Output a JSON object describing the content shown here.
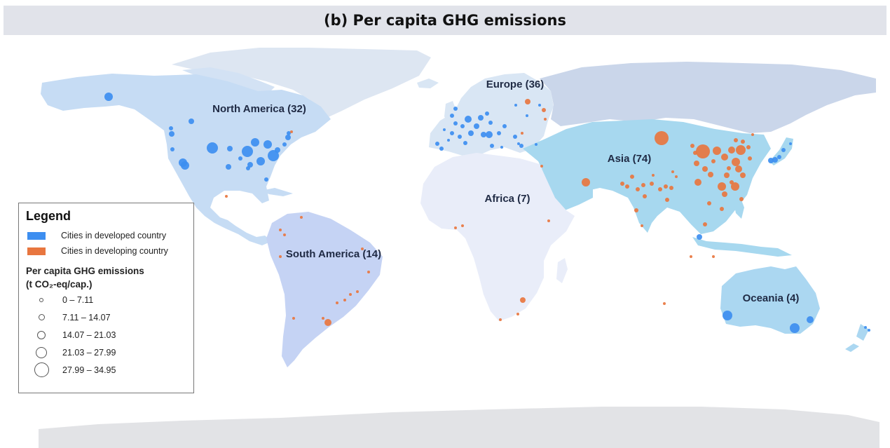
{
  "title": "(b) Per capita GHG emissions",
  "regions": [
    {
      "id": "north-america",
      "label": "North America (32)"
    },
    {
      "id": "europe",
      "label": "Europe (36)"
    },
    {
      "id": "asia",
      "label": "Asia (74)"
    },
    {
      "id": "africa",
      "label": "Africa (7)"
    },
    {
      "id": "south-america",
      "label": "South America (14)"
    },
    {
      "id": "oceania",
      "label": "Oceania (4)"
    }
  ],
  "legend": {
    "title": "Legend",
    "categories": [
      {
        "label": "Cities in developed country",
        "color": "#3d8ef0"
      },
      {
        "label": "Cities in developing country",
        "color": "#e8763f"
      }
    ],
    "size_title_line1": "Per capita GHG emissions",
    "size_title_line2": "(t CO₂-eq/cap.)",
    "size_classes": [
      "0 – 7.11",
      "7.11 – 14.07",
      "14.07 – 21.03",
      "21.03 – 27.99",
      "27.99 – 34.95"
    ]
  },
  "colors": {
    "developed": "#3d8ef0",
    "developing": "#e8763f",
    "north_america": "#c6dcf4",
    "south_america": "#c5d3f4",
    "europe": "#d9e6f4",
    "russia": "#cad6ea",
    "asia": "#a7d8ef",
    "africa": "#e9edf9",
    "oceania": "#abd7f1",
    "greenland": "#dde6f2",
    "antarctica": "#e2e3e6"
  }
}
